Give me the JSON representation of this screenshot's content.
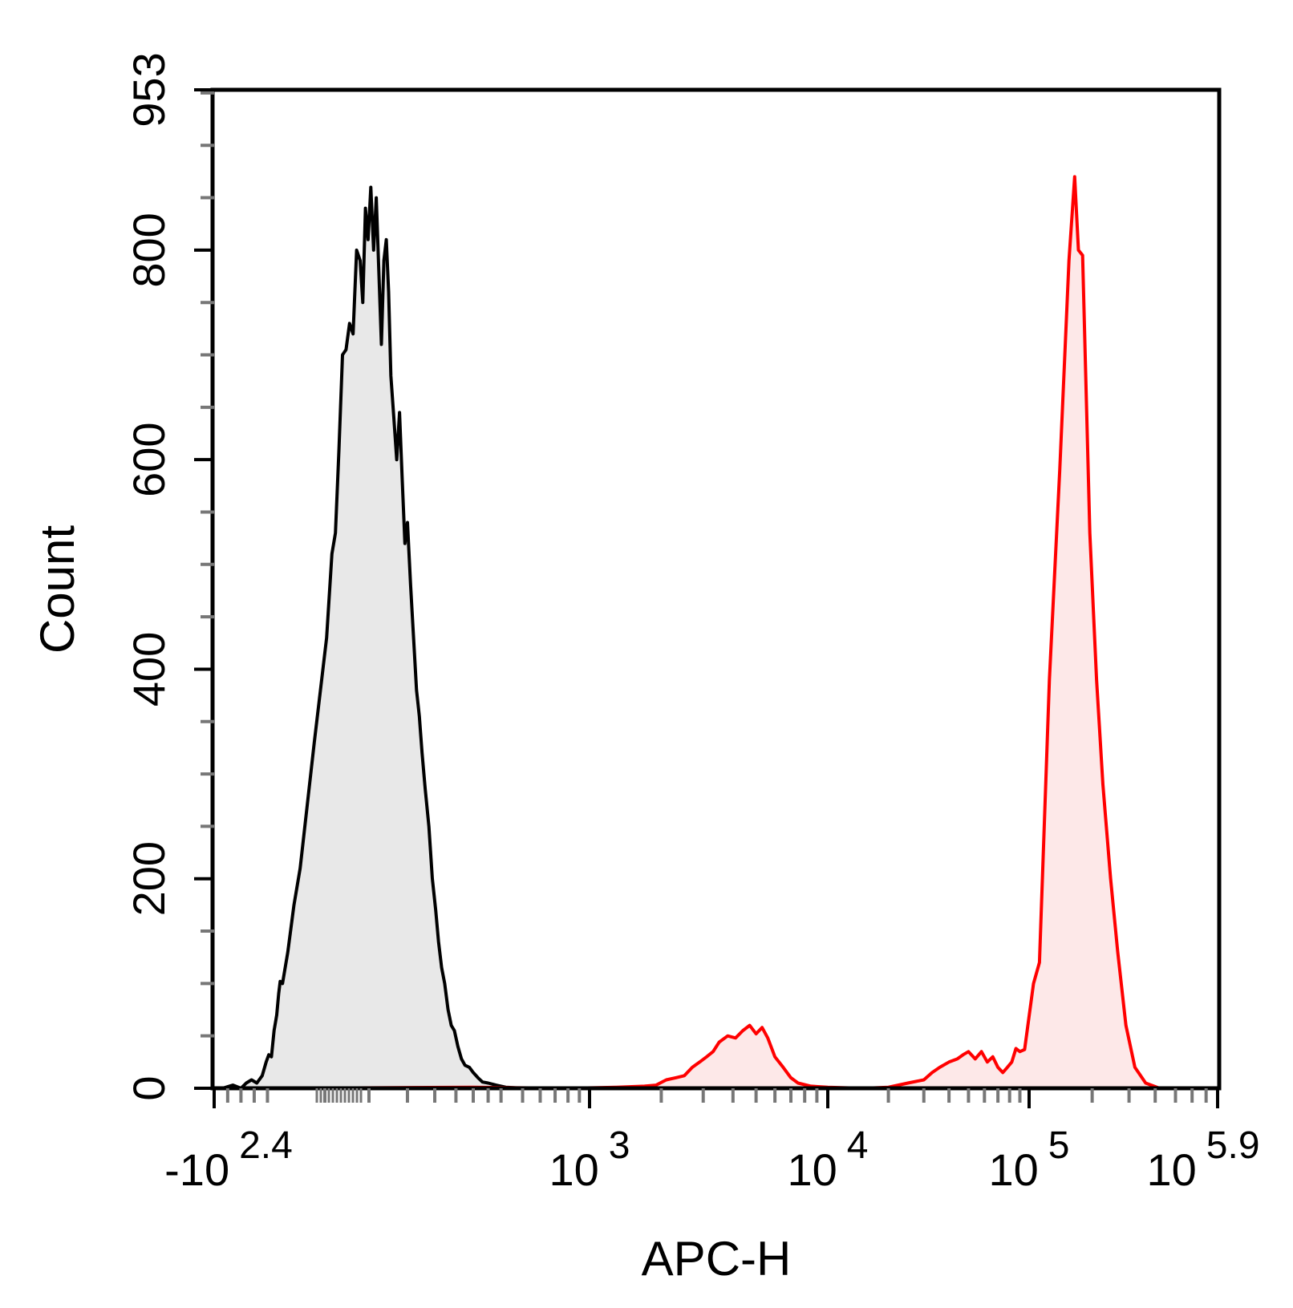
{
  "chart_data": {
    "type": "area",
    "title": "",
    "xlabel": "APC-H",
    "ylabel": "Count",
    "x_scale": "biexponential",
    "xlim": [
      -251,
      794328
    ],
    "ylim": [
      0,
      953
    ],
    "grid": false,
    "legend": "none",
    "y_ticks": [
      {
        "value": 0,
        "label": "0"
      },
      {
        "value": 200,
        "label": "200"
      },
      {
        "value": 400,
        "label": "400"
      },
      {
        "value": 600,
        "label": "600"
      },
      {
        "value": 800,
        "label": "800"
      },
      {
        "value": 953,
        "label": "953"
      }
    ],
    "x_ticks": [
      {
        "value": -251,
        "base": "-10",
        "exp": "2.4"
      },
      {
        "value": 1000,
        "base": "10",
        "exp": "3"
      },
      {
        "value": 10000,
        "base": "10",
        "exp": "4"
      },
      {
        "value": 100000,
        "base": "10",
        "exp": "5"
      },
      {
        "value": 794328,
        "base": "10",
        "exp": "5.9"
      }
    ],
    "series": [
      {
        "color": "#000000",
        "fill": "#e8e8e8",
        "points": [
          [
            -251,
            0
          ],
          [
            -220,
            0
          ],
          [
            -180,
            3
          ],
          [
            -150,
            0
          ],
          [
            -130,
            5
          ],
          [
            -110,
            8
          ],
          [
            -90,
            5
          ],
          [
            -70,
            12
          ],
          [
            -55,
            25
          ],
          [
            -45,
            32
          ],
          [
            -35,
            30
          ],
          [
            -25,
            55
          ],
          [
            -15,
            70
          ],
          [
            -8,
            90
          ],
          [
            -2,
            102
          ],
          [
            2,
            100
          ],
          [
            8,
            130
          ],
          [
            15,
            175
          ],
          [
            22,
            210
          ],
          [
            30,
            270
          ],
          [
            38,
            330
          ],
          [
            45,
            380
          ],
          [
            52,
            430
          ],
          [
            58,
            510
          ],
          [
            62,
            530
          ],
          [
            66,
            610
          ],
          [
            70,
            700
          ],
          [
            74,
            705
          ],
          [
            78,
            730
          ],
          [
            82,
            720
          ],
          [
            86,
            800
          ],
          [
            90,
            790
          ],
          [
            93,
            750
          ],
          [
            96,
            840
          ],
          [
            99,
            810
          ],
          [
            102,
            860
          ],
          [
            105,
            800
          ],
          [
            108,
            850
          ],
          [
            111,
            780
          ],
          [
            114,
            710
          ],
          [
            117,
            790
          ],
          [
            120,
            810
          ],
          [
            123,
            760
          ],
          [
            126,
            680
          ],
          [
            130,
            640
          ],
          [
            134,
            600
          ],
          [
            138,
            645
          ],
          [
            142,
            580
          ],
          [
            146,
            520
          ],
          [
            150,
            540
          ],
          [
            155,
            480
          ],
          [
            160,
            430
          ],
          [
            165,
            380
          ],
          [
            170,
            355
          ],
          [
            175,
            320
          ],
          [
            181,
            285
          ],
          [
            188,
            250
          ],
          [
            195,
            200
          ],
          [
            202,
            170
          ],
          [
            208,
            140
          ],
          [
            215,
            115
          ],
          [
            222,
            100
          ],
          [
            230,
            75
          ],
          [
            238,
            60
          ],
          [
            246,
            55
          ],
          [
            255,
            40
          ],
          [
            265,
            28
          ],
          [
            275,
            22
          ],
          [
            288,
            20
          ],
          [
            300,
            15
          ],
          [
            315,
            10
          ],
          [
            330,
            6
          ],
          [
            350,
            5
          ],
          [
            380,
            3
          ],
          [
            420,
            1
          ],
          [
            500,
            0
          ],
          [
            800,
            0
          ],
          [
            1200,
            0
          ]
        ]
      },
      {
        "color": "#ff0000",
        "fill": "#fde8e8",
        "points": [
          [
            -251,
            0
          ],
          [
            0,
            0
          ],
          [
            300,
            1
          ],
          [
            800,
            0
          ],
          [
            1300,
            1
          ],
          [
            1700,
            2
          ],
          [
            1900,
            3
          ],
          [
            2100,
            8
          ],
          [
            2300,
            10
          ],
          [
            2500,
            12
          ],
          [
            2700,
            20
          ],
          [
            2900,
            25
          ],
          [
            3100,
            30
          ],
          [
            3300,
            35
          ],
          [
            3500,
            44
          ],
          [
            3800,
            50
          ],
          [
            4100,
            48
          ],
          [
            4400,
            55
          ],
          [
            4700,
            60
          ],
          [
            5000,
            52
          ],
          [
            5300,
            58
          ],
          [
            5600,
            48
          ],
          [
            6000,
            30
          ],
          [
            6500,
            20
          ],
          [
            7000,
            10
          ],
          [
            7500,
            5
          ],
          [
            8500,
            2
          ],
          [
            10000,
            1
          ],
          [
            15000,
            0
          ],
          [
            20000,
            1
          ],
          [
            25000,
            5
          ],
          [
            30000,
            8
          ],
          [
            33000,
            15
          ],
          [
            36000,
            20
          ],
          [
            40000,
            25
          ],
          [
            44000,
            28
          ],
          [
            47000,
            32
          ],
          [
            50000,
            35
          ],
          [
            54000,
            28
          ],
          [
            58000,
            35
          ],
          [
            62000,
            25
          ],
          [
            66000,
            30
          ],
          [
            70000,
            20
          ],
          [
            74000,
            15
          ],
          [
            78000,
            20
          ],
          [
            82000,
            25
          ],
          [
            86000,
            38
          ],
          [
            90000,
            35
          ],
          [
            95000,
            37
          ],
          [
            105000,
            100
          ],
          [
            112000,
            120
          ],
          [
            125000,
            390
          ],
          [
            140000,
            590
          ],
          [
            155000,
            790
          ],
          [
            165000,
            870
          ],
          [
            172000,
            800
          ],
          [
            180000,
            795
          ],
          [
            195000,
            530
          ],
          [
            210000,
            390
          ],
          [
            225000,
            290
          ],
          [
            245000,
            200
          ],
          [
            265000,
            130
          ],
          [
            290000,
            60
          ],
          [
            320000,
            20
          ],
          [
            360000,
            5
          ],
          [
            420000,
            0
          ],
          [
            600000,
            0
          ]
        ]
      }
    ]
  }
}
